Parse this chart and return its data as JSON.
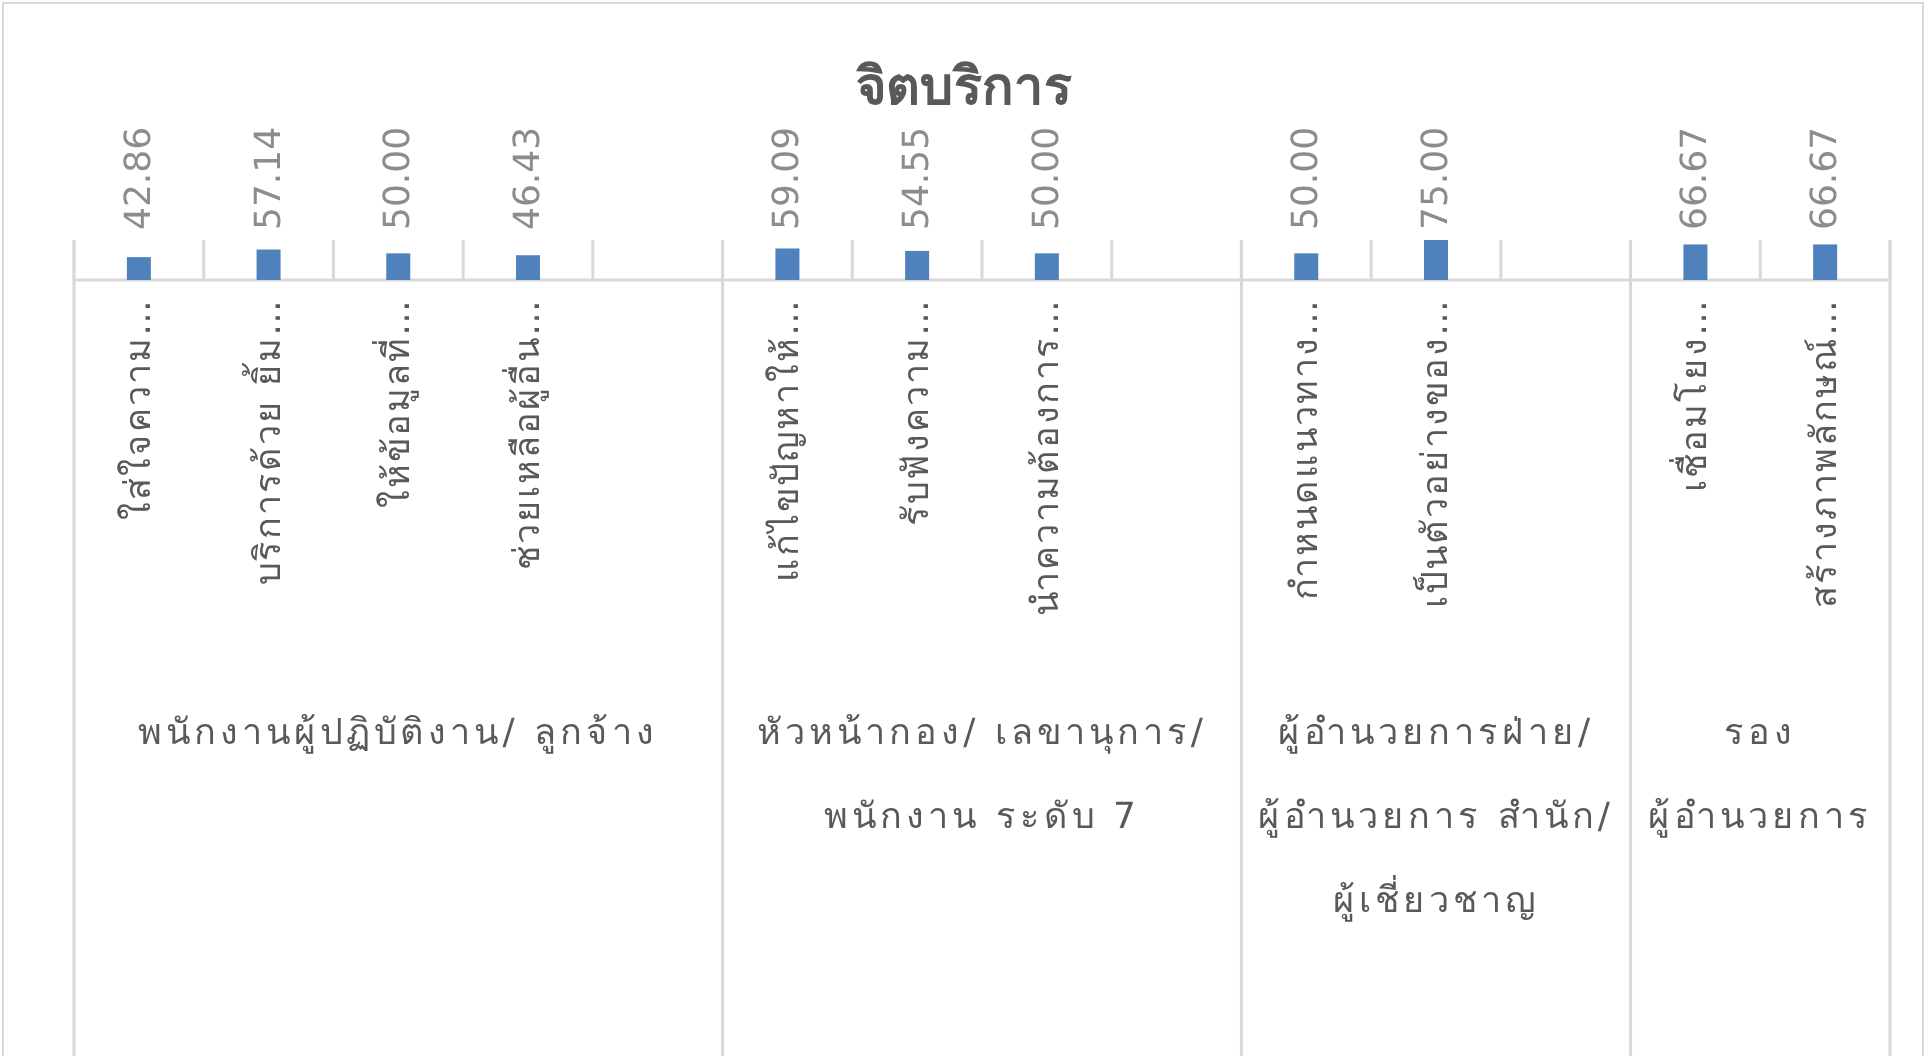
{
  "chart_data": {
    "type": "bar",
    "title": "จิตบริการ",
    "color": "#4f81bd",
    "categories": [
      "ใส่ใจความ…",
      "บริการด้วย ยิ้ม…",
      "ให้ข้อมูลที่…",
      "ช่วยเหลือผู้อื่น…",
      null,
      "แก้ไขปัญหาให้…",
      "รับฟังความ…",
      "นำความต้องการ…",
      null,
      "กำหนดแนวทาง…",
      "เป็นตัวอย่างของ…",
      null,
      "เชื่อมโยง…",
      "สร้างภาพลักษณ์…"
    ],
    "values": [
      42.86,
      57.14,
      50.0,
      46.43,
      null,
      59.09,
      54.55,
      50.0,
      null,
      50.0,
      75.0,
      null,
      66.67,
      66.67
    ],
    "value_labels": [
      "42.86",
      "57.14",
      "50.00",
      "46.43",
      null,
      "59.09",
      "54.55",
      "50.00",
      null,
      "50.00",
      "75.00",
      null,
      "66.67",
      "66.67"
    ],
    "annotations": [
      "พนักงานผู้ปฏิบัติงาน/ ลูกจ้าง",
      "หัวหน้ากอง/ เลขานุการ/ พนักงาน ระดับ 7",
      "ผู้อำนวยการฝ่าย/ ผู้อำนวยการ สำนัก/ ผู้เชี่ยวชาญ",
      "รอง ผู้อำนวยการ"
    ]
  }
}
